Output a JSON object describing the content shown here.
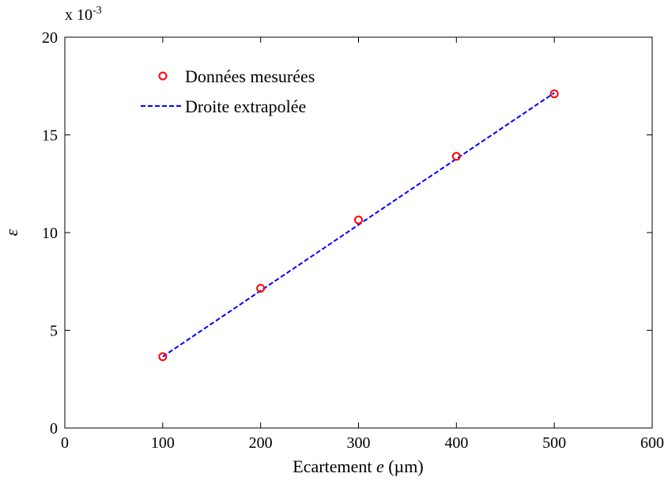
{
  "chart_data": {
    "type": "line",
    "xlabel_prefix": "Ecartement ",
    "xlabel_var": "e",
    "xlabel_suffix": " (µm)",
    "ylabel": "ε",
    "y_multiplier_base": "x 10",
    "y_multiplier_exp": "-3",
    "xlim": [
      0,
      600
    ],
    "ylim": [
      0,
      20
    ],
    "xticks": [
      0,
      100,
      200,
      300,
      400,
      500,
      600
    ],
    "yticks": [
      0,
      5,
      10,
      15,
      20
    ],
    "grid": false,
    "legend_position": "top-left",
    "series": [
      {
        "name": "Données mesurées",
        "kind": "scatter",
        "marker": "circle",
        "color": "#ff0000",
        "x": [
          100,
          200,
          300,
          400,
          500
        ],
        "y": [
          3.65,
          7.15,
          10.65,
          13.9,
          17.1
        ]
      },
      {
        "name": "Droite extrapolée",
        "kind": "line",
        "dash": "dashed",
        "color": "#0000ff",
        "x": [
          100,
          500
        ],
        "y": [
          3.65,
          17.15
        ]
      }
    ]
  }
}
